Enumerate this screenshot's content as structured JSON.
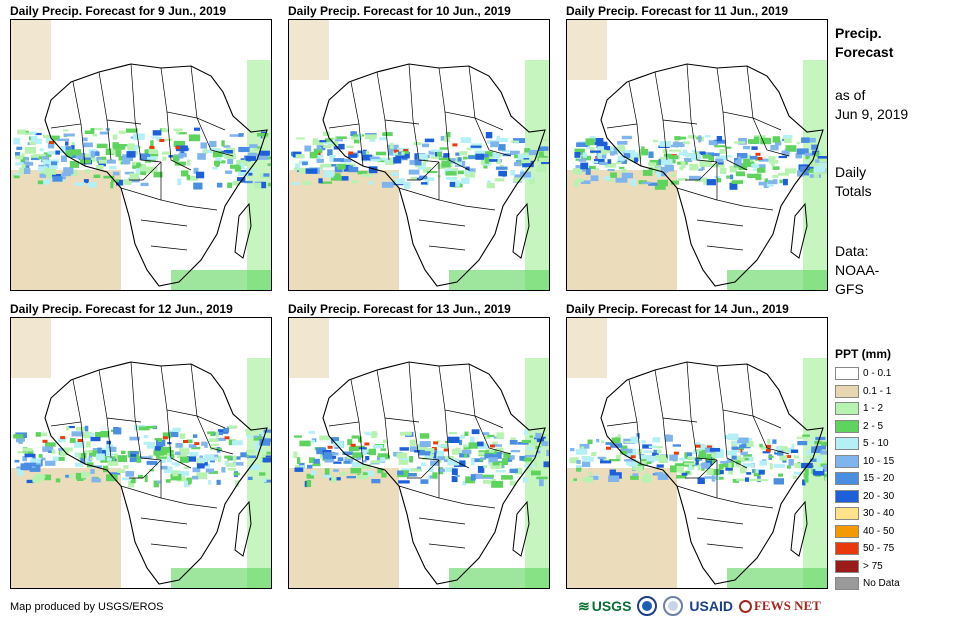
{
  "panels": [
    {
      "title": "Daily Precip. Forecast for 9 Jun., 2019"
    },
    {
      "title": "Daily Precip. Forecast for 10 Jun., 2019"
    },
    {
      "title": "Daily Precip. Forecast for 11 Jun., 2019"
    },
    {
      "title": "Daily Precip. Forecast for 12 Jun., 2019"
    },
    {
      "title": "Daily Precip. Forecast for 13 Jun., 2019"
    },
    {
      "title": "Daily Precip. Forecast for 14 Jun., 2019"
    }
  ],
  "side": {
    "title_line1": "Precip.",
    "title_line2": "Forecast",
    "asof_line1": "as of",
    "asof_line2": "Jun 9, 2019",
    "totals_line1": "Daily",
    "totals_line2": "Totals",
    "data_line1": "Data:",
    "data_line2": "NOAA-",
    "data_line3": "GFS"
  },
  "legend": {
    "title": "PPT (mm)",
    "items": [
      {
        "label": "0 - 0.1",
        "color": "#ffffff"
      },
      {
        "label": "0.1 - 1",
        "color": "#e8d6b0"
      },
      {
        "label": "1 - 2",
        "color": "#b8f2b0"
      },
      {
        "label": "2 - 5",
        "color": "#5ed35e"
      },
      {
        "label": "5 - 10",
        "color": "#b4f0f5"
      },
      {
        "label": "10 - 15",
        "color": "#7fb4ec"
      },
      {
        "label": "15 - 20",
        "color": "#4a8ee2"
      },
      {
        "label": "20 - 30",
        "color": "#1c5fd8"
      },
      {
        "label": "30 - 40",
        "color": "#ffe28a"
      },
      {
        "label": "40 - 50",
        "color": "#f29a00"
      },
      {
        "label": "50 - 75",
        "color": "#e83a0a"
      },
      {
        "label": "> 75",
        "color": "#9b1a1a"
      },
      {
        "label": "No Data",
        "color": "#9a9a9a"
      }
    ]
  },
  "footer": {
    "credit": "Map produced by USGS/EROS",
    "logo_usgs": "USGS",
    "logo_usaid": "USAID",
    "logo_fewsnet": "FEWS NET"
  }
}
